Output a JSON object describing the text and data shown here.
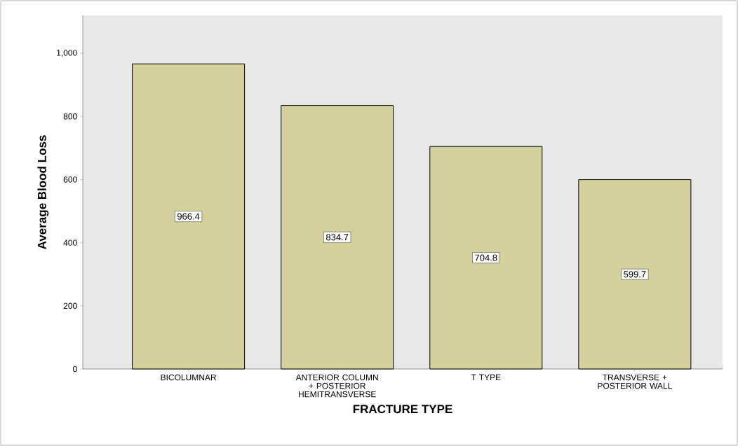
{
  "chart_data": {
    "type": "bar",
    "xlabel": "FRACTURE TYPE",
    "ylabel": "Average Blood Loss",
    "categories": [
      "BICOLUMNAR",
      "ANTERIOR COLUMN + POSTERIOR HEMITRANSVERSE",
      "T TYPE",
      "TRANSVERSE + POSTERIOR WALL"
    ],
    "values": [
      966.4,
      834.7,
      704.8,
      599.7
    ],
    "color": "#d4d19c",
    "ylim": [
      0,
      1120
    ],
    "yticks": [
      0,
      200,
      400,
      600,
      800,
      {
        "value": 1000,
        "label": "1,000"
      }
    ],
    "data_labels": true
  }
}
